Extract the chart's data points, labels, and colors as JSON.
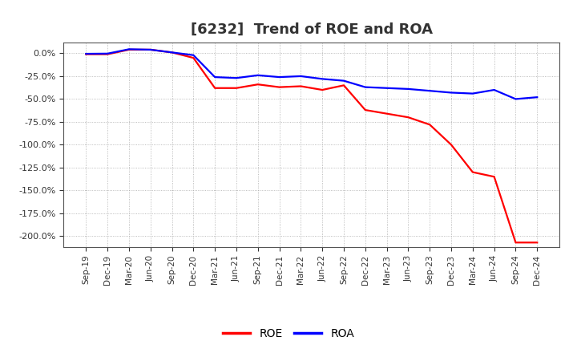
{
  "title": "[6232]  Trend of ROE and ROA",
  "title_fontsize": 13,
  "title_color": "#333333",
  "background_color": "#ffffff",
  "plot_bg_color": "#ffffff",
  "grid_color": "#aaaaaa",
  "roe_color": "#ff0000",
  "roa_color": "#0000ff",
  "line_width": 1.6,
  "ylim": [
    -2.12,
    0.12
  ],
  "yticks": [
    0.0,
    -0.25,
    -0.5,
    -0.75,
    -1.0,
    -1.25,
    -1.5,
    -1.75,
    -2.0
  ],
  "xtick_labels": [
    "Sep-19",
    "Dec-19",
    "Mar-20",
    "Jun-20",
    "Sep-20",
    "Dec-20",
    "Mar-21",
    "Jun-21",
    "Sep-21",
    "Dec-21",
    "Mar-22",
    "Jun-22",
    "Sep-22",
    "Dec-22",
    "Mar-23",
    "Jun-23",
    "Sep-23",
    "Dec-23",
    "Mar-24",
    "Jun-24",
    "Sep-24",
    "Dec-24"
  ],
  "roe_values": [
    -0.01,
    -0.01,
    0.04,
    0.04,
    0.01,
    -0.05,
    -0.38,
    -0.38,
    -0.34,
    -0.37,
    -0.36,
    -0.4,
    -0.35,
    -0.62,
    -0.66,
    -0.7,
    -0.78,
    -1.0,
    -1.3,
    -1.35,
    -2.07,
    -2.07
  ],
  "roa_values": [
    -0.005,
    -0.003,
    0.045,
    0.04,
    0.01,
    -0.02,
    -0.26,
    -0.27,
    -0.24,
    -0.26,
    -0.25,
    -0.28,
    -0.3,
    -0.37,
    -0.38,
    -0.39,
    -0.41,
    -0.43,
    -0.44,
    -0.4,
    -0.5,
    -0.48
  ],
  "legend_ncol": 2,
  "legend_fontsize": 10
}
